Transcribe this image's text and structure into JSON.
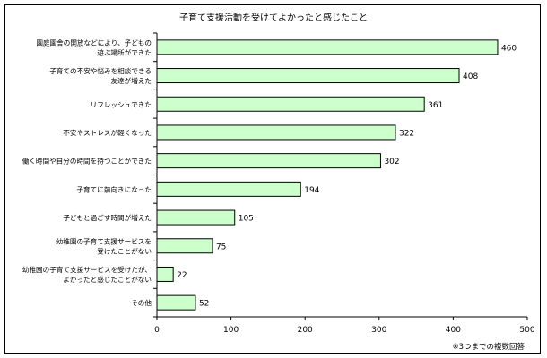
{
  "chart_data": {
    "type": "bar",
    "orientation": "horizontal",
    "title": "子育て支援活動を受けてよかったと感じたこと",
    "categories": [
      [
        "園庭園舎の開放などにより、子どもの",
        "遊ぶ場所ができた"
      ],
      [
        "子育ての不安や悩みを相談できる",
        "友達が増えた"
      ],
      [
        "リフレッシュできた"
      ],
      [
        "不安やストレスが軽くなった"
      ],
      [
        "働く時間や自分の時間を持つことができた"
      ],
      [
        "子育てに前向きになった"
      ],
      [
        "子どもと過ごす時間が増えた"
      ],
      [
        "幼稚園の子育て支援サービスを",
        "受けたことがない"
      ],
      [
        "幼稚園の子育て支援サービスを受けたが、",
        "よかったと感じたことがない"
      ],
      [
        "その他"
      ]
    ],
    "values": [
      460,
      408,
      361,
      322,
      302,
      194,
      105,
      75,
      22,
      52
    ],
    "data_labels": [
      "460",
      "408",
      "361",
      "322",
      "302",
      "194",
      "105",
      "75",
      "22",
      "52"
    ],
    "xlim": [
      0,
      500
    ],
    "x_ticks": [
      "0",
      "100",
      "200",
      "300",
      "400",
      "500"
    ],
    "grid": false,
    "legend": "none",
    "footnote": "※3つまでの複数回答",
    "colors": {
      "bar_fill": "#ccffcc",
      "bar_stroke": "#000000",
      "axis": "#000000"
    }
  }
}
